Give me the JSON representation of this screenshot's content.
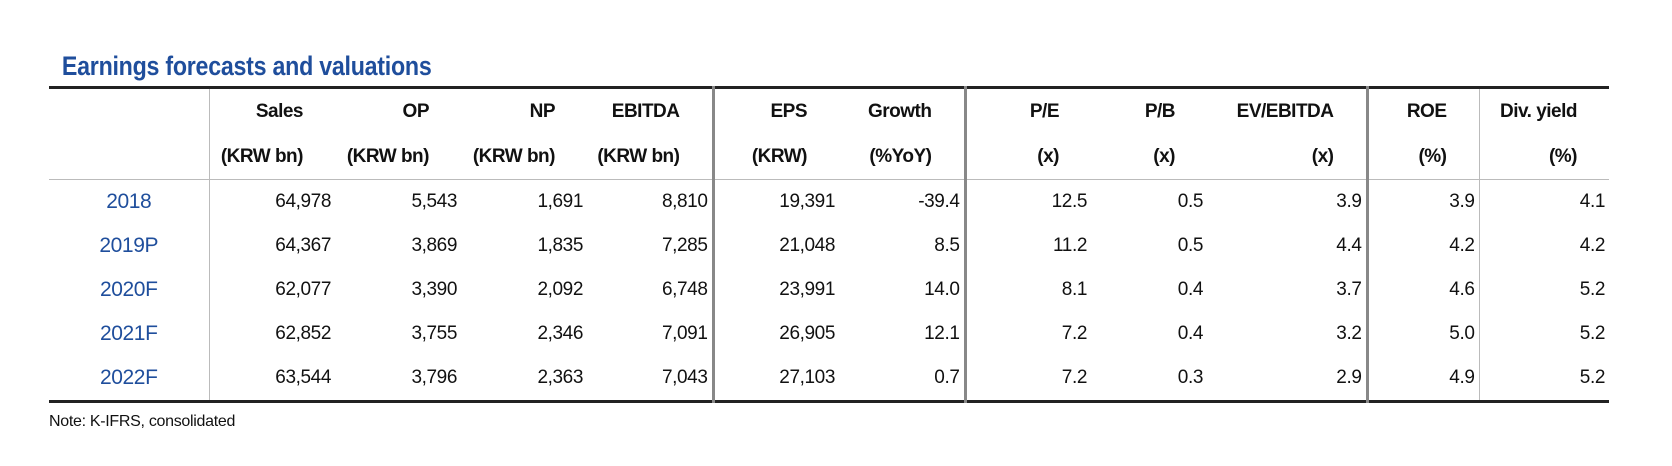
{
  "title": "Earnings forecasts and valuations",
  "headers": {
    "row1": [
      "",
      "Sales",
      "OP",
      "NP",
      "EBITDA",
      "EPS",
      "Growth",
      "P/E",
      "P/B",
      "EV/EBITDA",
      "ROE",
      "Div. yield"
    ],
    "row2": [
      "",
      "(KRW bn)",
      "(KRW bn)",
      "(KRW bn)",
      "(KRW bn)",
      "(KRW)",
      "(%YoY)",
      "(x)",
      "(x)",
      "(x)",
      "(%)",
      "(%)"
    ]
  },
  "rows": [
    [
      "2018",
      "64,978",
      "5,543",
      "1,691",
      "8,810",
      "19,391",
      "-39.4",
      "12.5",
      "0.5",
      "3.9",
      "3.9",
      "4.1"
    ],
    [
      "2019P",
      "64,367",
      "3,869",
      "1,835",
      "7,285",
      "21,048",
      "8.5",
      "11.2",
      "0.5",
      "4.4",
      "4.2",
      "4.2"
    ],
    [
      "2020F",
      "62,077",
      "3,390",
      "2,092",
      "6,748",
      "23,991",
      "14.0",
      "8.1",
      "0.4",
      "3.7",
      "4.6",
      "5.2"
    ],
    [
      "2021F",
      "62,852",
      "3,755",
      "2,346",
      "7,091",
      "26,905",
      "12.1",
      "7.2",
      "0.4",
      "3.2",
      "5.0",
      "5.2"
    ],
    [
      "2022F",
      "63,544",
      "3,796",
      "2,363",
      "7,043",
      "27,103",
      "0.7",
      "7.2",
      "0.3",
      "2.9",
      "4.9",
      "5.2"
    ]
  ],
  "note": "Note: K-IFRS, consolidated",
  "colors": {
    "title": "#1f4e9c",
    "year": "#1f4e9c"
  }
}
